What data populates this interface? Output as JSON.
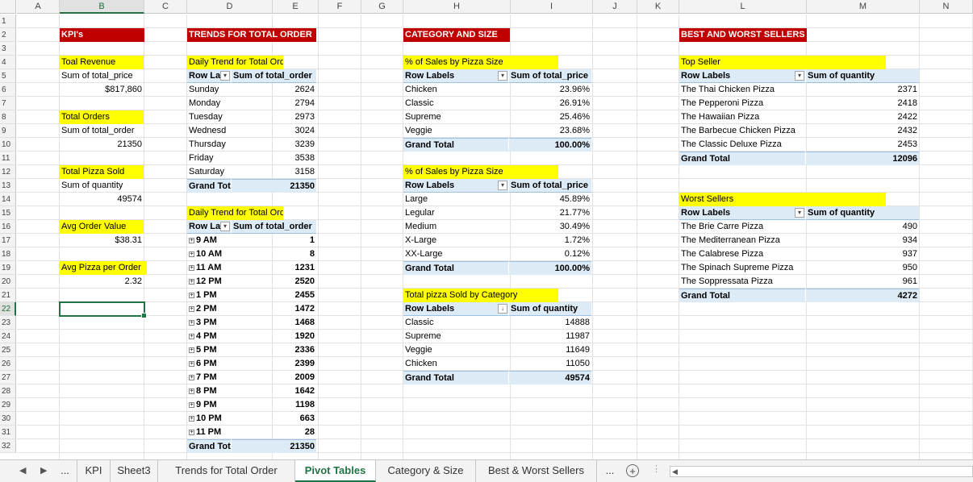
{
  "columns": [
    "A",
    "B",
    "C",
    "D",
    "E",
    "F",
    "G",
    "H",
    "I",
    "J",
    "K",
    "L",
    "M",
    "N"
  ],
  "rows": [
    "1",
    "2",
    "3",
    "4",
    "5",
    "6",
    "7",
    "8",
    "9",
    "10",
    "11",
    "12",
    "13",
    "14",
    "15",
    "16",
    "17",
    "18",
    "19",
    "20",
    "21",
    "22",
    "23",
    "24",
    "25",
    "26",
    "27",
    "28",
    "29",
    "30",
    "31",
    "32"
  ],
  "kpi": {
    "header": "KPI's",
    "revenue_label": "Toal Revenue",
    "revenue_field": "Sum of total_price",
    "revenue_value": "$817,860",
    "orders_label": "Total Orders",
    "orders_field": "Sum of total_order",
    "orders_value": "21350",
    "pizza_label": "Total Pizza Sold",
    "pizza_field": "Sum of quantity",
    "pizza_value": "49574",
    "aov_label": "Avg Order Value",
    "aov_value": "$38.31",
    "app_label": "Avg Pizza per Order",
    "app_value": "2.32"
  },
  "trends": {
    "header": "TRENDS FOR TOTAL ORDER",
    "daily": {
      "title": "Daily Trend for Total Orders",
      "col1": "Row La",
      "col2": "Sum of total_order",
      "rows": [
        {
          "label": "Sunday",
          "value": "2624"
        },
        {
          "label": "Monday",
          "value": "2794"
        },
        {
          "label": "Tuesday",
          "value": "2973"
        },
        {
          "label": "Wednesd",
          "value": "3024"
        },
        {
          "label": "Thursday",
          "value": "3239"
        },
        {
          "label": "Friday",
          "value": "3538"
        },
        {
          "label": "Saturday",
          "value": "3158"
        }
      ],
      "total_label": "Grand Tot",
      "total_value": "21350"
    },
    "hourly": {
      "title": "Daily Trend for Total Orders",
      "col1": "Row La",
      "col2": "Sum of total_order",
      "rows": [
        {
          "label": "9 AM",
          "value": "1"
        },
        {
          "label": "10 AM",
          "value": "8"
        },
        {
          "label": "11 AM",
          "value": "1231"
        },
        {
          "label": "12 PM",
          "value": "2520"
        },
        {
          "label": "1 PM",
          "value": "2455"
        },
        {
          "label": "2 PM",
          "value": "1472"
        },
        {
          "label": "3 PM",
          "value": "1468"
        },
        {
          "label": "4 PM",
          "value": "1920"
        },
        {
          "label": "5 PM",
          "value": "2336"
        },
        {
          "label": "6 PM",
          "value": "2399"
        },
        {
          "label": "7 PM",
          "value": "2009"
        },
        {
          "label": "8 PM",
          "value": "1642"
        },
        {
          "label": "9 PM",
          "value": "1198"
        },
        {
          "label": "10 PM",
          "value": "663"
        },
        {
          "label": "11 PM",
          "value": "28"
        }
      ],
      "total_label": "Grand Tot",
      "total_value": "21350"
    }
  },
  "category": {
    "header": "CATEGORY AND SIZE",
    "by_category": {
      "title": "% of Sales by Pizza Size",
      "col1": "Row Labels",
      "col2": "Sum of total_price",
      "rows": [
        {
          "label": "Chicken",
          "value": "23.96%"
        },
        {
          "label": "Classic",
          "value": "26.91%"
        },
        {
          "label": "Supreme",
          "value": "25.46%"
        },
        {
          "label": "Veggie",
          "value": "23.68%"
        }
      ],
      "total_label": "Grand Total",
      "total_value": "100.00%"
    },
    "by_size": {
      "title": "% of Sales by Pizza Size",
      "col1": "Row Labels",
      "col2": "Sum of total_price",
      "rows": [
        {
          "label": "Large",
          "value": "45.89%"
        },
        {
          "label": "Legular",
          "value": "21.77%"
        },
        {
          "label": "Medium",
          "value": "30.49%"
        },
        {
          "label": "X-Large",
          "value": "1.72%"
        },
        {
          "label": "XX-Large",
          "value": "0.12%"
        }
      ],
      "total_label": "Grand Total",
      "total_value": "100.00%"
    },
    "sold": {
      "title": "Total pizza Sold by Category",
      "col1": "Row Labels",
      "col2": "Sum of quantity",
      "rows": [
        {
          "label": "Classic",
          "value": "14888"
        },
        {
          "label": "Supreme",
          "value": "11987"
        },
        {
          "label": "Veggie",
          "value": "11649"
        },
        {
          "label": "Chicken",
          "value": "11050"
        }
      ],
      "total_label": "Grand Total",
      "total_value": "49574"
    }
  },
  "sellers": {
    "header": "BEST AND WORST SELLERS",
    "top": {
      "title": "Top Seller",
      "col1": "Row Labels",
      "col2": "Sum of quantity",
      "rows": [
        {
          "label": "The Thai Chicken Pizza",
          "value": "2371"
        },
        {
          "label": "The Pepperoni Pizza",
          "value": "2418"
        },
        {
          "label": "The Hawaiian Pizza",
          "value": "2422"
        },
        {
          "label": "The Barbecue Chicken Pizza",
          "value": "2432"
        },
        {
          "label": "The Classic Deluxe Pizza",
          "value": "2453"
        }
      ],
      "total_label": "Grand Total",
      "total_value": "12096"
    },
    "worst": {
      "title": "Worst Sellers",
      "col1": "Row Labels",
      "col2": "Sum of quantity",
      "rows": [
        {
          "label": "The Brie Carre Pizza",
          "value": "490"
        },
        {
          "label": "The Mediterranean Pizza",
          "value": "934"
        },
        {
          "label": "The Calabrese Pizza",
          "value": "937"
        },
        {
          "label": "The Spinach Supreme Pizza",
          "value": "950"
        },
        {
          "label": "The Soppressata Pizza",
          "value": "961"
        }
      ],
      "total_label": "Grand Total",
      "total_value": "4272"
    }
  },
  "tabs": {
    "ellipsis": "...",
    "items": [
      "KPI",
      "Sheet3",
      "Trends for Total Order",
      "Pivot Tables",
      "Category & Size",
      "Best & Worst Sellers"
    ],
    "active": "Pivot Tables"
  },
  "colors": {
    "header_red": "#c00000",
    "title_yellow": "#ffff00",
    "pivot_blue": "#ddebf7",
    "excel_green": "#217346"
  }
}
